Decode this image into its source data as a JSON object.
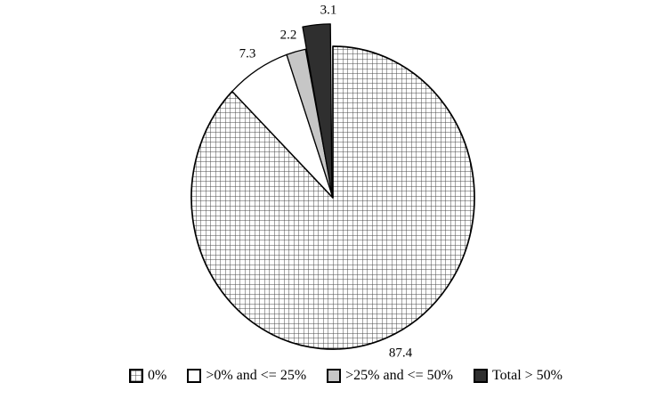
{
  "chart_data": {
    "type": "pie",
    "title": "",
    "start_angle_deg": 0,
    "direction": "clockwise",
    "legend_position": "bottom",
    "background_color": "#ffffff",
    "outline_color": "#000000",
    "pattern_line_color": "#4a4a4a",
    "slices": [
      {
        "label": "0%",
        "value": 87.4,
        "value_label": "87.4",
        "fill": "crosshatch",
        "exploded": false
      },
      {
        "label": ">0% and <= 25%",
        "value": 7.3,
        "value_label": "7.3",
        "fill": "#ffffff",
        "exploded": false
      },
      {
        "label": ">25% and <= 50%",
        "value": 2.2,
        "value_label": "2.2",
        "fill": "#c6c6c6",
        "exploded": false
      },
      {
        "label": "Total > 50%",
        "value": 3.1,
        "value_label": "3.1",
        "fill": "#2f2f2f",
        "exploded": true
      }
    ]
  }
}
